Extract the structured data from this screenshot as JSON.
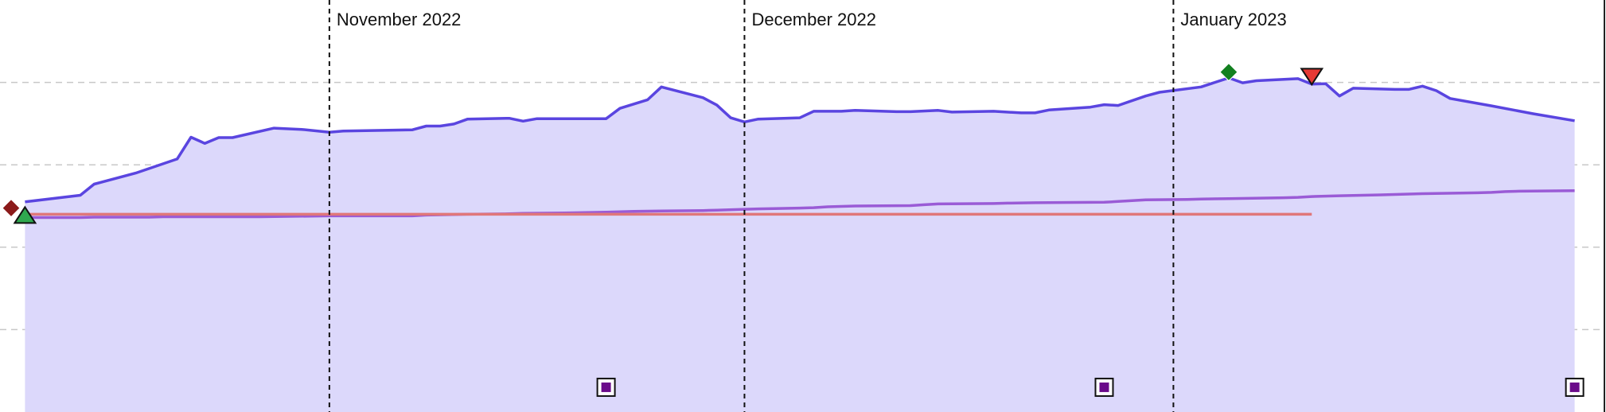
{
  "chart_data": {
    "type": "area",
    "title": "",
    "xlabel": "",
    "ylabel": "",
    "x_range": [
      "2022-10-09",
      "2023-01-31"
    ],
    "y_range": [
      0,
      100
    ],
    "grid": "horizontal dashed",
    "month_markers": [
      {
        "date": "2022-11-01",
        "label": "November 2022"
      },
      {
        "date": "2022-12-01",
        "label": "December 2022"
      },
      {
        "date": "2023-01-01",
        "label": "January 2023"
      }
    ],
    "series": [
      {
        "kind": "area",
        "color": "#5a45e0",
        "fill": "#dcd8fb",
        "points": [
          [
            "2022-10-10",
            51.0
          ],
          [
            "2022-10-14",
            52.6
          ],
          [
            "2022-10-15",
            55.3
          ],
          [
            "2022-10-18",
            58.0
          ],
          [
            "2022-10-21",
            61.4
          ],
          [
            "2022-10-22",
            66.7
          ],
          [
            "2022-10-23",
            65.2
          ],
          [
            "2022-10-24",
            66.6
          ],
          [
            "2022-10-25",
            66.6
          ],
          [
            "2022-10-28",
            68.9
          ],
          [
            "2022-10-30",
            68.6
          ],
          [
            "2022-11-01",
            67.9
          ],
          [
            "2022-11-02",
            68.2
          ],
          [
            "2022-11-07",
            68.5
          ],
          [
            "2022-11-08",
            69.4
          ],
          [
            "2022-11-09",
            69.4
          ],
          [
            "2022-11-10",
            69.9
          ],
          [
            "2022-11-11",
            71.1
          ],
          [
            "2022-11-14",
            71.3
          ],
          [
            "2022-11-15",
            70.6
          ],
          [
            "2022-11-16",
            71.2
          ],
          [
            "2022-11-21",
            71.2
          ],
          [
            "2022-11-22",
            73.7
          ],
          [
            "2022-11-24",
            75.8
          ],
          [
            "2022-11-25",
            78.9
          ],
          [
            "2022-11-28",
            76.3
          ],
          [
            "2022-11-29",
            74.5
          ],
          [
            "2022-11-30",
            71.4
          ],
          [
            "2022-12-01",
            70.4
          ],
          [
            "2022-12-02",
            71.1
          ],
          [
            "2022-12-05",
            71.4
          ],
          [
            "2022-12-06",
            73.0
          ],
          [
            "2022-12-08",
            73.0
          ],
          [
            "2022-12-09",
            73.2
          ],
          [
            "2022-12-12",
            72.9
          ],
          [
            "2022-12-13",
            72.9
          ],
          [
            "2022-12-15",
            73.2
          ],
          [
            "2022-12-16",
            72.8
          ],
          [
            "2022-12-19",
            73.0
          ],
          [
            "2022-12-21",
            72.6
          ],
          [
            "2022-12-22",
            72.6
          ],
          [
            "2022-12-23",
            73.3
          ],
          [
            "2022-12-26",
            74.0
          ],
          [
            "2022-12-27",
            74.6
          ],
          [
            "2022-12-28",
            74.4
          ],
          [
            "2022-12-30",
            76.7
          ],
          [
            "2022-12-31",
            77.6
          ],
          [
            "2023-01-03",
            78.9
          ],
          [
            "2023-01-05",
            81.1
          ],
          [
            "2023-01-06",
            79.9
          ],
          [
            "2023-01-07",
            80.4
          ],
          [
            "2023-01-10",
            80.9
          ],
          [
            "2023-01-11",
            79.6
          ],
          [
            "2023-01-12",
            79.7
          ],
          [
            "2023-01-13",
            76.7
          ],
          [
            "2023-01-14",
            78.6
          ],
          [
            "2023-01-17",
            78.3
          ],
          [
            "2023-01-18",
            78.3
          ],
          [
            "2023-01-19",
            79.1
          ],
          [
            "2023-01-20",
            78.0
          ],
          [
            "2023-01-21",
            76.1
          ],
          [
            "2023-01-24",
            74.3
          ],
          [
            "2023-01-27",
            72.4
          ],
          [
            "2023-01-30",
            70.7
          ]
        ]
      },
      {
        "kind": "line",
        "color": "#9a5bd6",
        "points": [
          [
            "2022-10-10",
            47.2
          ],
          [
            "2022-10-14",
            47.2
          ],
          [
            "2022-10-15",
            47.3
          ],
          [
            "2022-10-19",
            47.3
          ],
          [
            "2022-10-20",
            47.4
          ],
          [
            "2022-10-26",
            47.4
          ],
          [
            "2022-10-27",
            47.4
          ],
          [
            "2022-11-01",
            47.6
          ],
          [
            "2022-11-07",
            47.6
          ],
          [
            "2022-11-08",
            47.8
          ],
          [
            "2022-11-11",
            48.0
          ],
          [
            "2022-11-14",
            48.1
          ],
          [
            "2022-11-15",
            48.2
          ],
          [
            "2022-11-18",
            48.3
          ],
          [
            "2022-11-21",
            48.5
          ],
          [
            "2022-11-22",
            48.6
          ],
          [
            "2022-11-23",
            48.7
          ],
          [
            "2022-11-25",
            48.8
          ],
          [
            "2022-11-28",
            48.9
          ],
          [
            "2022-11-29",
            49.0
          ],
          [
            "2022-12-01",
            49.2
          ],
          [
            "2022-12-02",
            49.3
          ],
          [
            "2022-12-05",
            49.5
          ],
          [
            "2022-12-06",
            49.6
          ],
          [
            "2022-12-07",
            49.8
          ],
          [
            "2022-12-08",
            49.9
          ],
          [
            "2022-12-09",
            50.0
          ],
          [
            "2022-12-13",
            50.1
          ],
          [
            "2022-12-14",
            50.3
          ],
          [
            "2022-12-15",
            50.5
          ],
          [
            "2022-12-19",
            50.6
          ],
          [
            "2022-12-20",
            50.7
          ],
          [
            "2022-12-22",
            50.8
          ],
          [
            "2022-12-27",
            50.9
          ],
          [
            "2022-12-28",
            51.1
          ],
          [
            "2022-12-29",
            51.3
          ],
          [
            "2022-12-30",
            51.5
          ],
          [
            "2023-01-02",
            51.6
          ],
          [
            "2023-01-03",
            51.7
          ],
          [
            "2023-01-05",
            51.8
          ],
          [
            "2023-01-09",
            52.0
          ],
          [
            "2023-01-10",
            52.1
          ],
          [
            "2023-01-11",
            52.3
          ],
          [
            "2023-01-13",
            52.5
          ],
          [
            "2023-01-16",
            52.7
          ],
          [
            "2023-01-18",
            52.9
          ],
          [
            "2023-01-19",
            53.0
          ],
          [
            "2023-01-23",
            53.2
          ],
          [
            "2023-01-24",
            53.3
          ],
          [
            "2023-01-25",
            53.5
          ],
          [
            "2023-01-26",
            53.6
          ],
          [
            "2023-01-30",
            53.7
          ]
        ]
      },
      {
        "kind": "line",
        "color": "#e0777a",
        "points": [
          [
            "2022-10-10",
            48.0
          ],
          [
            "2023-01-11",
            48.0
          ]
        ]
      }
    ],
    "markers": [
      {
        "shape": "diamond",
        "color": "#8b1a1a",
        "date": "2022-10-09",
        "value": 49.5
      },
      {
        "shape": "triangle-up",
        "color": "#2fa84f",
        "date": "2022-10-10",
        "value": 47.8
      },
      {
        "shape": "diamond",
        "color": "#12801f",
        "date": "2023-01-05",
        "value": 82.5
      },
      {
        "shape": "triangle-down",
        "color": "#e53935",
        "date": "2023-01-11",
        "value": 81.4
      },
      {
        "shape": "square",
        "color": "#6a0a8a",
        "date": "2022-11-21",
        "value": 6.0
      },
      {
        "shape": "square",
        "color": "#6a0a8a",
        "date": "2022-12-27",
        "value": 6.0
      },
      {
        "shape": "square",
        "color": "#6a0a8a",
        "date": "2023-01-30",
        "value": 6.0
      }
    ]
  }
}
